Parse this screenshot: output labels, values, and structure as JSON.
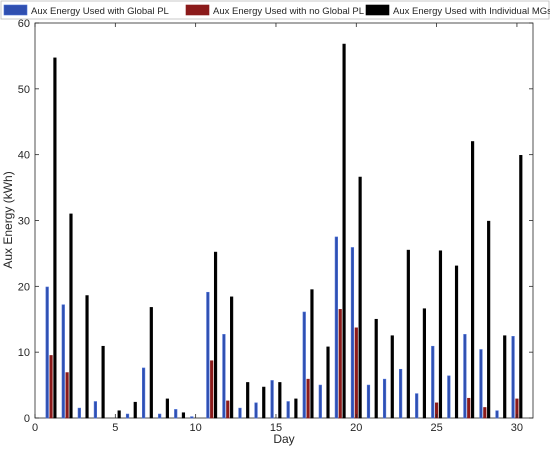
{
  "chart_data": {
    "type": "bar",
    "title": "",
    "xlabel": "Day",
    "ylabel": "Aux Energy (kWh)",
    "xlim": [
      0,
      31
    ],
    "ylim": [
      0,
      60
    ],
    "xticks": [
      0,
      5,
      10,
      15,
      20,
      25,
      30
    ],
    "yticks": [
      0,
      10,
      20,
      30,
      40,
      50,
      60
    ],
    "grid": false,
    "legend_position": "top",
    "categories": [
      1,
      2,
      3,
      4,
      5,
      6,
      7,
      8,
      9,
      10,
      11,
      12,
      13,
      14,
      15,
      16,
      17,
      18,
      19,
      20,
      21,
      22,
      23,
      24,
      25,
      26,
      27,
      28,
      29,
      30
    ],
    "series": [
      {
        "name": "Aux Energy Used with Global PL",
        "color": "#2f4fb0",
        "values": [
          19.9,
          17.2,
          1.5,
          2.5,
          0,
          0.6,
          7.6,
          0.6,
          1.3,
          0.2,
          19.1,
          12.7,
          1.5,
          2.3,
          5.7,
          2.5,
          16.1,
          5.0,
          27.5,
          25.9,
          5.0,
          5.9,
          7.4,
          3.7,
          10.9,
          6.4,
          12.7,
          10.4,
          1.1,
          12.4
        ]
      },
      {
        "name": "Aux Energy Used with no Global PL",
        "color": "#8b1a1a",
        "values": [
          9.5,
          6.9,
          0,
          0,
          0,
          0,
          0,
          0,
          0,
          0,
          8.7,
          2.6,
          0,
          0,
          0,
          0,
          5.9,
          0,
          16.5,
          13.7,
          0,
          0,
          0,
          0,
          2.3,
          0,
          3.0,
          1.6,
          0,
          2.9
        ]
      },
      {
        "name": "Aux Energy Used with Individual MGs",
        "color": "#000000",
        "values": [
          54.7,
          31.0,
          18.6,
          10.9,
          1.1,
          2.4,
          16.8,
          2.9,
          0.8,
          0,
          25.2,
          18.4,
          5.4,
          4.7,
          5.4,
          2.9,
          19.5,
          10.8,
          56.8,
          36.6,
          15.0,
          12.5,
          25.5,
          16.6,
          25.4,
          23.1,
          42.0,
          29.9,
          12.5,
          39.9
        ]
      }
    ]
  }
}
